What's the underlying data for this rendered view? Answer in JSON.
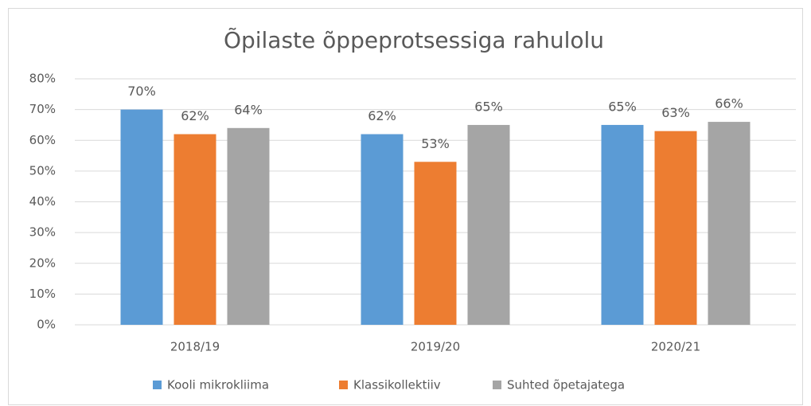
{
  "chart_data": {
    "type": "bar",
    "title": "Õpilaste õppeprotsessiga rahulolu",
    "categories": [
      "2018/19",
      "2019/20",
      "2020/21"
    ],
    "series": [
      {
        "name": "Kooli mikrokliima",
        "color": "#5b9bd5",
        "values": [
          70,
          62,
          65
        ],
        "value_labels": [
          "70%",
          "62%",
          "65%"
        ]
      },
      {
        "name": "Klassikollektiiv",
        "color": "#ed7d31",
        "values": [
          62,
          53,
          63
        ],
        "value_labels": [
          "62%",
          "53%",
          "63%"
        ]
      },
      {
        "name": "Suhted õpetajatega",
        "color": "#a5a5a5",
        "values": [
          64,
          65,
          66
        ],
        "value_labels": [
          "64%",
          "65%",
          "66%"
        ]
      }
    ],
    "ylim": [
      0,
      80
    ],
    "yticks": [
      {
        "value": 0,
        "label": "0%"
      },
      {
        "value": 10,
        "label": "10%"
      },
      {
        "value": 20,
        "label": "20%"
      },
      {
        "value": 30,
        "label": "30%"
      },
      {
        "value": 40,
        "label": "40%"
      },
      {
        "value": 50,
        "label": "50%"
      },
      {
        "value": 60,
        "label": "60%"
      },
      {
        "value": 70,
        "label": "70%"
      },
      {
        "value": 80,
        "label": "80%"
      }
    ],
    "grid": true,
    "legend": "bottom"
  }
}
